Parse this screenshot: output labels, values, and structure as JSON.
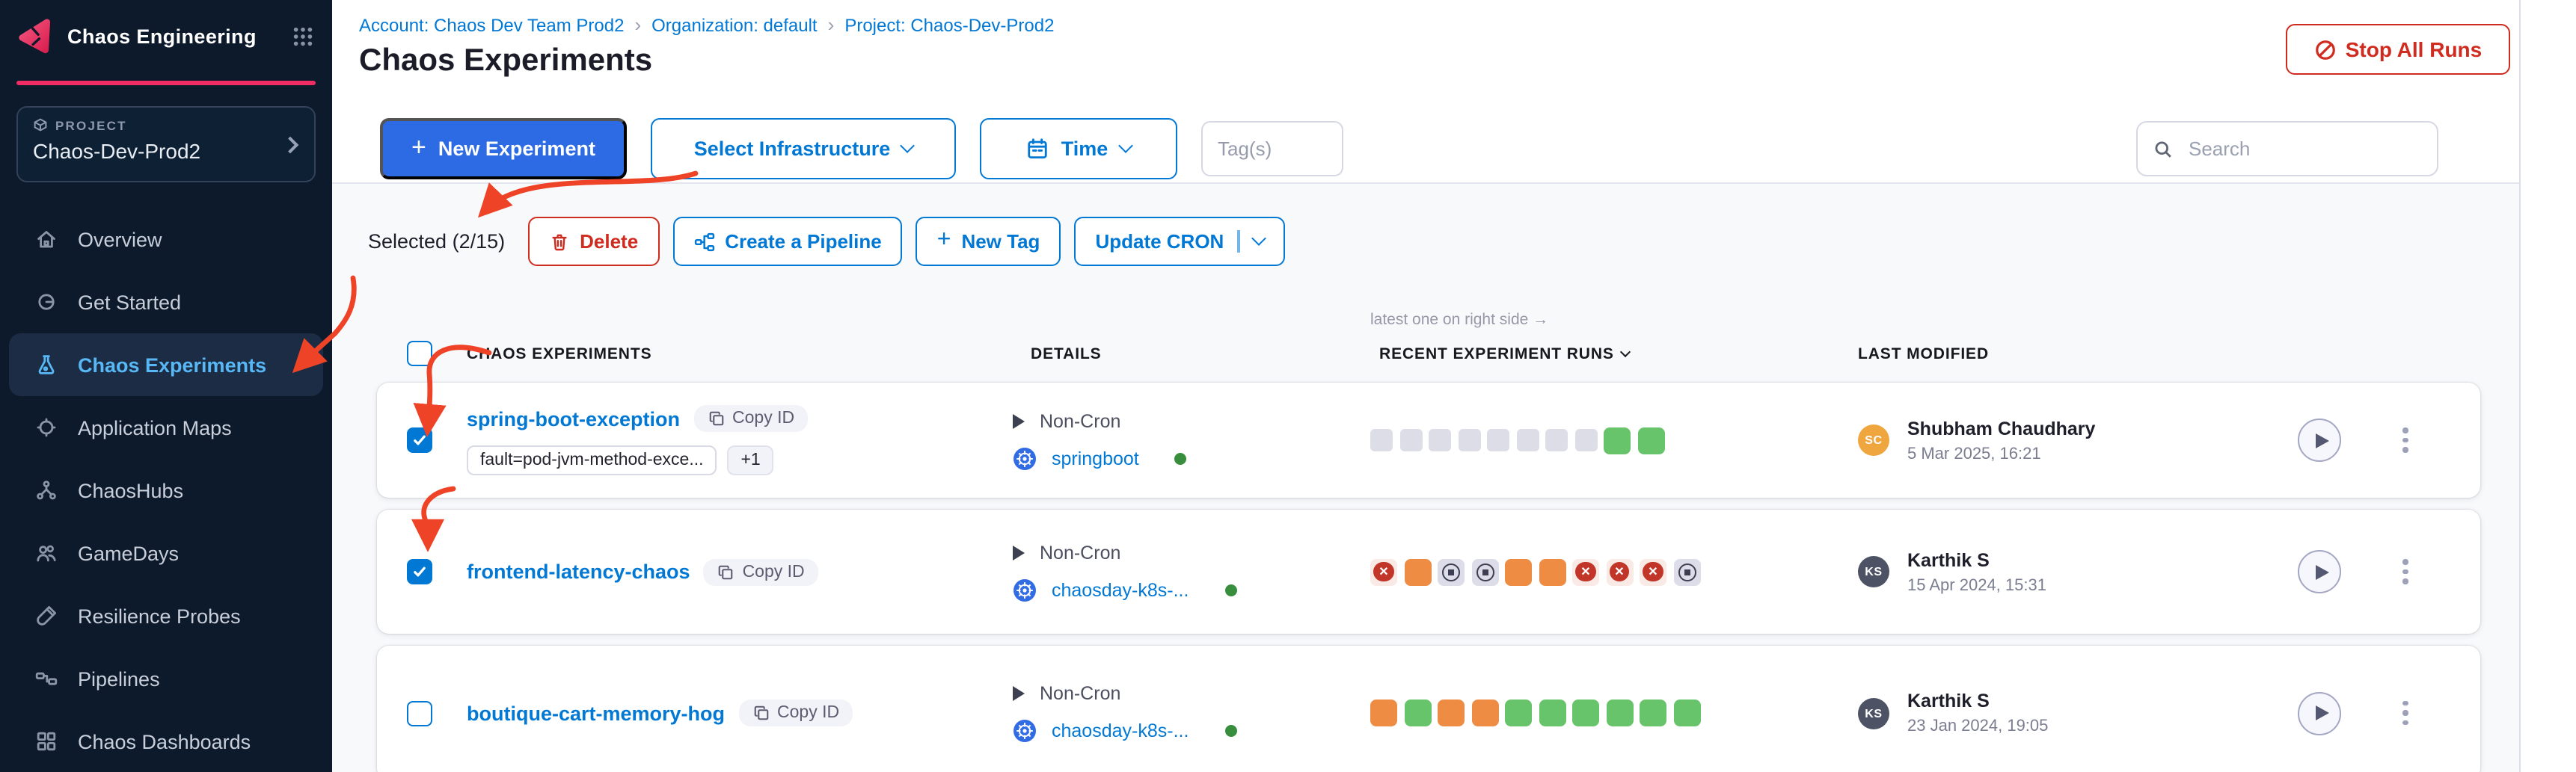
{
  "colors": {
    "accent_blue": "#0278d5",
    "primary_button_blue": "#2c6be3",
    "danger_red": "#cf2b1f",
    "brand_magenta": "#ef2c63",
    "sidebar_bg": "#0c1a2b",
    "sidebar_selected_text": "#58b8f6",
    "run_success_green": "#67c46a",
    "run_running_orange": "#ed8c42",
    "run_failed_red": "#c23529",
    "infra_active_green": "#388e3c",
    "annotation_arrow": "#ee4326"
  },
  "icons": {
    "app_logo": "pink-chaos-triangle",
    "module_grid": "nine-dots",
    "project": "cube",
    "overview": "home",
    "get_started": "circle-line",
    "chaos_experiments": "flask",
    "application_maps": "crosshair-circle",
    "chaoshubs": "node-network",
    "gamedays": "people",
    "resilience_probes": "test-tube",
    "pipelines": "flow-boxes",
    "chaos_dashboards": "tile-grid",
    "stop": "slashed-circle",
    "time": "calendar",
    "search": "magnifier",
    "delete": "trash",
    "copy": "overlapping-squares",
    "infra": "kubernetes-wheel",
    "run_failed": "circle-x",
    "run_stopped": "circle-square"
  },
  "sidebar": {
    "app_title": "Chaos Engineering",
    "project_label": "PROJECT",
    "project_name": "Chaos-Dev-Prod2",
    "items": [
      {
        "label": "Overview",
        "selected": false
      },
      {
        "label": "Get Started",
        "selected": false
      },
      {
        "label": "Chaos Experiments",
        "selected": true
      },
      {
        "label": "Application Maps",
        "selected": false
      },
      {
        "label": "ChaosHubs",
        "selected": false
      },
      {
        "label": "GameDays",
        "selected": false
      },
      {
        "label": "Resilience Probes",
        "selected": false
      },
      {
        "label": "Pipelines",
        "selected": false
      },
      {
        "label": "Chaos Dashboards",
        "selected": false
      }
    ]
  },
  "header": {
    "breadcrumb": {
      "account": "Account: Chaos Dev Team Prod2",
      "separator": "›",
      "organization": "Organization: default",
      "project": "Project: Chaos-Dev-Prod2"
    },
    "page_title": "Chaos Experiments",
    "stop_all_runs_label": "Stop All Runs"
  },
  "toolbar": {
    "new_experiment_plus": "+",
    "new_experiment_label": "New Experiment",
    "select_infrastructure_label": "Select Infrastructure",
    "time_label": "Time",
    "tags_placeholder": "Tag(s)",
    "search_placeholder": "Search"
  },
  "selection_bar": {
    "selected_text": "Selected (2/15)",
    "delete_label": "Delete",
    "create_pipeline_label": "Create a Pipeline",
    "new_tag_plus": "+",
    "new_tag_label": "New Tag",
    "update_cron_label": "Update CRON"
  },
  "table": {
    "runs_hint": "latest one on right side →",
    "header": {
      "experiments": "CHAOS EXPERIMENTS",
      "details": "DETAILS",
      "runs": "RECENT EXPERIMENT RUNS",
      "modified": "LAST MODIFIED"
    },
    "rows": [
      {
        "name": "spring-boot-exception",
        "copy_id_label": "Copy ID",
        "checked": true,
        "tag": "fault=pod-jvm-method-exce...",
        "more_tags": "+1",
        "cron": "Non-Cron",
        "infra": "springboot",
        "runs": [
          "empty",
          "empty",
          "empty",
          "empty",
          "empty",
          "empty",
          "empty",
          "empty",
          "success",
          "success"
        ],
        "modified_initials": "SC",
        "avatar_color": "#f0a63e",
        "modified_by": "Shubham Chaudhary",
        "modified_date": "5 Mar 2025, 16:21"
      },
      {
        "name": "frontend-latency-chaos",
        "copy_id_label": "Copy ID",
        "checked": true,
        "cron": "Non-Cron",
        "infra": "chaosday-k8s-...",
        "runs": [
          "failed",
          "running",
          "stopped",
          "stopped",
          "running",
          "running",
          "failed",
          "failed",
          "failed",
          "stopped"
        ],
        "modified_initials": "KS",
        "avatar_color": "#4d5264",
        "modified_by": "Karthik S",
        "modified_date": "15 Apr 2024, 15:31"
      },
      {
        "name": "boutique-cart-memory-hog",
        "copy_id_label": "Copy ID",
        "checked": false,
        "cron": "Non-Cron",
        "infra": "chaosday-k8s-...",
        "runs": [
          "running",
          "success",
          "running",
          "running",
          "success",
          "success",
          "success",
          "success",
          "success",
          "success"
        ],
        "modified_initials": "KS",
        "avatar_color": "#4d5264",
        "modified_by": "Karthik S",
        "modified_date": "23 Jan 2024, 19:05"
      }
    ]
  }
}
